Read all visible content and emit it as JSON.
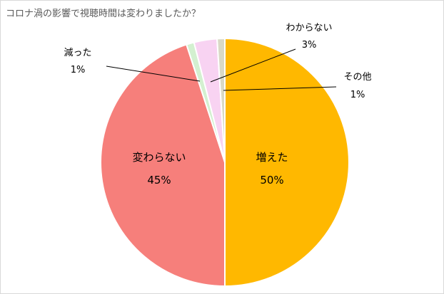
{
  "chart_data": {
    "type": "pie",
    "title": "コロナ渦の影響で視聴時間は変わりましたか？",
    "start_angle_deg": 0,
    "direction": "clockwise",
    "slices": [
      {
        "label": "増えた",
        "value": 50,
        "value_label": "50%",
        "color": "#FFB800"
      },
      {
        "label": "変わらない",
        "value": 45,
        "value_label": "45%",
        "color": "#F67F7B"
      },
      {
        "label": "減った",
        "value": 1,
        "value_label": "1%",
        "color": "#D3F0D0"
      },
      {
        "label": "わからない",
        "value": 3,
        "value_label": "3%",
        "color": "#F8D3F2"
      },
      {
        "label": "その他",
        "value": 1,
        "value_label": "1%",
        "color": "#D9D9C6"
      }
    ],
    "legend": "none",
    "slice_border_color": "#ffffff"
  }
}
